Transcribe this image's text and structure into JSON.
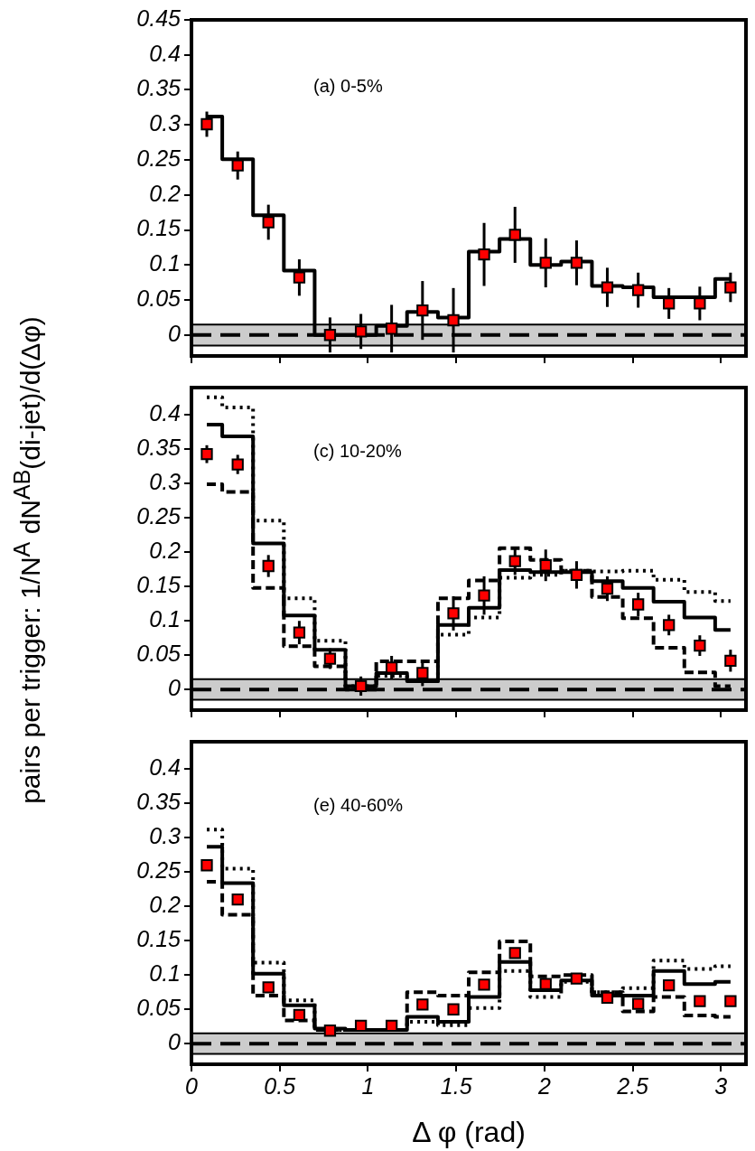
{
  "chart_data": [
    {
      "type": "step",
      "title": "(a) 0-5%",
      "ylabel": "pairs per trigger: 1/N$^{A}$ dN$^{AB}$(di-jet)/d(Δφ)",
      "x": [
        0.087,
        0.262,
        0.436,
        0.611,
        0.785,
        0.96,
        1.134,
        1.309,
        1.484,
        1.658,
        1.833,
        2.007,
        2.182,
        2.356,
        2.531,
        2.705,
        2.88,
        3.054
      ],
      "xlim": [
        0,
        3.1416
      ],
      "xticks": [
        0,
        0.5,
        1,
        1.5,
        2,
        2.5,
        3
      ],
      "ylim": [
        -0.03,
        0.45
      ],
      "yticks": [
        0,
        0.05,
        0.1,
        0.15,
        0.2,
        0.25,
        0.3,
        0.35,
        0.4,
        0.45
      ],
      "tick_labels": "y",
      "grid": false,
      "legend": false,
      "series": [
        {
          "type": "scatter",
          "marker": "square",
          "color": "#ff0000",
          "values": [
            0.301,
            0.242,
            0.161,
            0.082,
            0.0,
            0.005,
            0.009,
            0.035,
            0.021,
            0.115,
            0.143,
            0.103,
            0.103,
            0.068,
            0.064,
            0.045,
            0.045,
            0.068
          ],
          "errors": [
            0.018,
            0.02,
            0.025,
            0.026,
            0.025,
            0.025,
            0.034,
            0.042,
            0.046,
            0.045,
            0.04,
            0.035,
            0.032,
            0.028,
            0.025,
            0.022,
            0.024,
            0.021
          ]
        },
        {
          "line_style": "solid",
          "color": "#000000",
          "values": [
            0.312,
            0.251,
            0.171,
            0.092,
            0.0,
            0.0,
            0.013,
            0.033,
            0.025,
            0.119,
            0.137,
            0.1,
            0.105,
            0.07,
            0.068,
            0.054,
            0.054,
            0.08
          ]
        }
      ],
      "bands": [
        {
          "axis": "y",
          "from": -0.015,
          "to": 0.015,
          "color": "#000000"
        }
      ],
      "ref_lines": [
        {
          "axis": "y",
          "value": 0,
          "line_style": "dashed",
          "color": "#000000"
        },
        {
          "axis": "y",
          "value": 0.015,
          "line_style": "solid",
          "color": "#000000"
        },
        {
          "axis": "y",
          "value": -0.015,
          "line_style": "solid",
          "color": "#000000"
        }
      ]
    },
    {
      "type": "step",
      "title": "(c) 10-20%",
      "x": [
        0.087,
        0.262,
        0.436,
        0.611,
        0.785,
        0.96,
        1.134,
        1.309,
        1.484,
        1.658,
        1.833,
        2.007,
        2.182,
        2.356,
        2.531,
        2.705,
        2.88,
        3.054
      ],
      "xlim": [
        0,
        3.1416
      ],
      "xticks": [
        0,
        0.5,
        1,
        1.5,
        2,
        2.5,
        3
      ],
      "ylim": [
        -0.03,
        0.44
      ],
      "yticks": [
        0,
        0.05,
        0.1,
        0.15,
        0.2,
        0.25,
        0.3,
        0.35,
        0.4
      ],
      "tick_labels": "y",
      "grid": false,
      "legend": false,
      "series": [
        {
          "type": "scatter",
          "marker": "square",
          "color": "#ff0000",
          "values": [
            0.343,
            0.328,
            0.18,
            0.083,
            0.045,
            0.005,
            0.032,
            0.024,
            0.111,
            0.137,
            0.187,
            0.181,
            0.167,
            0.147,
            0.124,
            0.094,
            0.064,
            0.042
          ],
          "errors": [
            0.013,
            0.014,
            0.016,
            0.017,
            0.015,
            0.014,
            0.017,
            0.019,
            0.025,
            0.028,
            0.02,
            0.023,
            0.02,
            0.018,
            0.017,
            0.015,
            0.015,
            0.016
          ]
        },
        {
          "line_style": "solid",
          "color": "#000000",
          "values": [
            0.386,
            0.369,
            0.213,
            0.108,
            0.058,
            0.005,
            0.024,
            0.012,
            0.094,
            0.119,
            0.174,
            0.171,
            0.171,
            0.158,
            0.148,
            0.128,
            0.105,
            0.087
          ]
        },
        {
          "line_style": "dotted",
          "color": "#000000",
          "values": [
            0.426,
            0.411,
            0.246,
            0.133,
            0.071,
            0.005,
            0.02,
            0.012,
            0.08,
            0.105,
            0.163,
            0.167,
            0.173,
            0.172,
            0.173,
            0.16,
            0.142,
            0.129
          ]
        },
        {
          "line_style": "dashed",
          "color": "#000000",
          "values": [
            0.299,
            0.288,
            0.148,
            0.063,
            0.034,
            0.0,
            0.041,
            0.041,
            0.133,
            0.159,
            0.206,
            0.189,
            0.173,
            0.135,
            0.104,
            0.061,
            0.025,
            0.005
          ]
        }
      ],
      "bands": [
        {
          "axis": "y",
          "from": -0.015,
          "to": 0.015,
          "color": "#000000"
        }
      ],
      "ref_lines": [
        {
          "axis": "y",
          "value": 0,
          "line_style": "dashed",
          "color": "#000000"
        },
        {
          "axis": "y",
          "value": 0.015,
          "line_style": "solid",
          "color": "#000000"
        },
        {
          "axis": "y",
          "value": -0.015,
          "line_style": "solid",
          "color": "#000000"
        }
      ]
    },
    {
      "type": "step",
      "title": "(e) 40-60%",
      "xlabel": "Δ φ (rad)",
      "x": [
        0.087,
        0.262,
        0.436,
        0.611,
        0.785,
        0.96,
        1.134,
        1.309,
        1.484,
        1.658,
        1.833,
        2.007,
        2.182,
        2.356,
        2.531,
        2.705,
        2.88,
        3.054
      ],
      "xlim": [
        0,
        3.1416
      ],
      "xticks": [
        0,
        0.5,
        1,
        1.5,
        2,
        2.5,
        3
      ],
      "ylim": [
        -0.03,
        0.44
      ],
      "yticks": [
        0,
        0.05,
        0.1,
        0.15,
        0.2,
        0.25,
        0.3,
        0.35,
        0.4
      ],
      "grid": false,
      "legend": false,
      "series": [
        {
          "type": "scatter",
          "marker": "square",
          "color": "#ff0000",
          "values": [
            0.26,
            0.21,
            0.082,
            0.042,
            0.019,
            0.026,
            0.026,
            0.057,
            0.05,
            0.086,
            0.132,
            0.087,
            0.095,
            0.067,
            0.058,
            0.085,
            0.062,
            0.062
          ],
          "errors": [
            0.005,
            0.005,
            0.005,
            0.005,
            0.005,
            0.005,
            0.005,
            0.005,
            0.005,
            0.005,
            0.005,
            0.005,
            0.005,
            0.005,
            0.005,
            0.005,
            0.005,
            0.005
          ]
        },
        {
          "line_style": "solid",
          "color": "#000000",
          "values": [
            0.287,
            0.234,
            0.102,
            0.056,
            0.022,
            0.02,
            0.02,
            0.039,
            0.032,
            0.068,
            0.119,
            0.078,
            0.092,
            0.07,
            0.07,
            0.106,
            0.087,
            0.09
          ]
        },
        {
          "line_style": "dotted",
          "color": "#000000",
          "values": [
            0.312,
            0.255,
            0.118,
            0.063,
            0.02,
            0.02,
            0.02,
            0.032,
            0.027,
            0.052,
            0.106,
            0.068,
            0.09,
            0.075,
            0.081,
            0.121,
            0.109,
            0.113
          ]
        },
        {
          "line_style": "dashed",
          "color": "#000000",
          "values": [
            0.236,
            0.188,
            0.07,
            0.034,
            0.02,
            0.02,
            0.02,
            0.075,
            0.07,
            0.104,
            0.149,
            0.098,
            0.1,
            0.075,
            0.047,
            0.068,
            0.041,
            0.039
          ]
        }
      ],
      "bands": [
        {
          "axis": "y",
          "from": -0.015,
          "to": 0.015,
          "color": "#000000"
        }
      ],
      "ref_lines": [
        {
          "axis": "y",
          "value": 0,
          "line_style": "dashed",
          "color": "#000000"
        },
        {
          "axis": "y",
          "value": 0.015,
          "line_style": "solid",
          "color": "#000000"
        },
        {
          "axis": "y",
          "value": -0.015,
          "line_style": "solid",
          "color": "#000000"
        }
      ]
    }
  ]
}
